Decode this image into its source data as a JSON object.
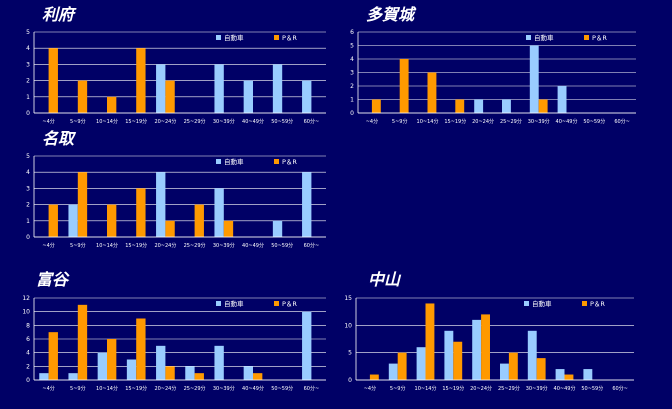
{
  "colors": {
    "background": "#000066",
    "series1": "#99ccff",
    "series2": "#ff9900",
    "grid": "#ffffff"
  },
  "chart_data": [
    {
      "type": "bar",
      "title": "利府",
      "categories": [
        "~4分",
        "5~9分",
        "10~14分",
        "15~19分",
        "20~24分",
        "25~29分",
        "30~39分",
        "40~49分",
        "50~59分",
        "60分~"
      ],
      "series": [
        {
          "name": "自動車",
          "values": [
            0,
            0,
            0,
            0,
            3,
            0,
            3,
            2,
            3,
            2
          ]
        },
        {
          "name": "P＆R",
          "values": [
            4,
            2,
            1,
            4,
            2,
            0,
            0,
            0,
            0,
            0
          ]
        }
      ],
      "ylim": [
        0,
        5
      ],
      "yticks": [
        0,
        1,
        2,
        3,
        4,
        5
      ],
      "legend": "top-right",
      "grid": true
    },
    {
      "type": "bar",
      "title": "多賀城",
      "categories": [
        "~4分",
        "5~9分",
        "10~14分",
        "15~19分",
        "20~24分",
        "25~29分",
        "30~39分",
        "40~49分",
        "50~59分",
        "60分~"
      ],
      "series": [
        {
          "name": "自動車",
          "values": [
            0,
            0,
            0,
            0,
            1,
            1,
            5,
            2,
            0,
            0
          ]
        },
        {
          "name": "P＆R",
          "values": [
            1,
            4,
            3,
            1,
            0,
            0,
            1,
            0,
            0,
            0
          ]
        }
      ],
      "ylim": [
        0,
        6
      ],
      "yticks": [
        0,
        1,
        2,
        3,
        4,
        5,
        6
      ],
      "legend": "top-right",
      "grid": true
    },
    {
      "type": "bar",
      "title": "名取",
      "categories": [
        "~4分",
        "5~9分",
        "10~14分",
        "15~19分",
        "20~24分",
        "25~29分",
        "30~39分",
        "40~49分",
        "50~59分",
        "60分~"
      ],
      "series": [
        {
          "name": "自動車",
          "values": [
            0,
            2,
            0,
            0,
            4,
            0,
            3,
            0,
            1,
            4
          ]
        },
        {
          "name": "P＆R",
          "values": [
            2,
            4,
            2,
            3,
            1,
            2,
            1,
            0,
            0,
            0
          ]
        }
      ],
      "ylim": [
        0,
        5
      ],
      "yticks": [
        0,
        1,
        2,
        3,
        4,
        5
      ],
      "legend": "top-right",
      "grid": true
    },
    {
      "type": "bar",
      "title": "富谷",
      "categories": [
        "~4分",
        "5~9分",
        "10~14分",
        "15~19分",
        "20~24分",
        "25~29分",
        "30~39分",
        "40~49分",
        "50~59分",
        "60分~"
      ],
      "series": [
        {
          "name": "自動車",
          "values": [
            1,
            1,
            4,
            3,
            5,
            2,
            5,
            2,
            0,
            10
          ]
        },
        {
          "name": "P＆R",
          "values": [
            7,
            11,
            6,
            9,
            2,
            1,
            0,
            1,
            0,
            0
          ]
        }
      ],
      "ylim": [
        0,
        12
      ],
      "yticks": [
        0,
        2,
        4,
        6,
        8,
        10,
        12
      ],
      "legend": "top-right",
      "grid": true
    },
    {
      "type": "bar",
      "title": "中山",
      "categories": [
        "~4分",
        "5~9分",
        "10~14分",
        "15~19分",
        "20~24分",
        "25~29分",
        "30~39分",
        "40~49分",
        "50~59分",
        "60分~"
      ],
      "series": [
        {
          "name": "自動車",
          "values": [
            0,
            3,
            6,
            9,
            11,
            3,
            9,
            2,
            2,
            0
          ]
        },
        {
          "name": "P＆R",
          "values": [
            1,
            5,
            14,
            7,
            12,
            5,
            4,
            1,
            0,
            0
          ]
        }
      ],
      "ylim": [
        0,
        15
      ],
      "yticks": [
        0,
        5,
        10,
        15
      ],
      "legend": "top-right",
      "grid": true
    }
  ]
}
